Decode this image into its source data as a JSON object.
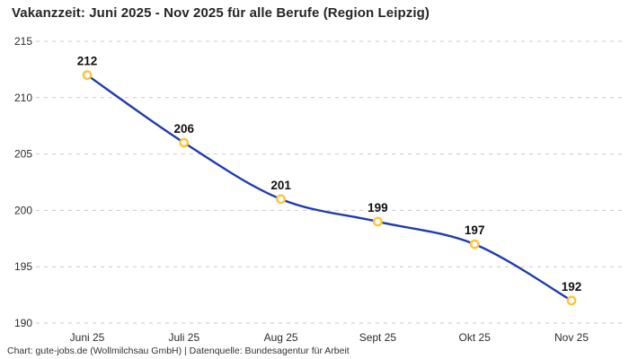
{
  "title": "Vakanzzeit: Juni 2025 - Nov 2025 für alle Berufe (Region Leipzig)",
  "footer": "Chart: gute-jobs.de (Wollmilchsau GmbH) | Datenquelle: Bundesagentur für Arbeit",
  "colors": {
    "line": "#1f3cad",
    "marker_ring": "#fec43c",
    "marker_fill": "#ffffff",
    "grid": "#c9c9c9",
    "title_text": "#262626",
    "tick_text": "#2d2d2d",
    "value_label_text": "#111111",
    "footer_text": "#333333",
    "background": "#ffffff"
  },
  "chart_data": {
    "type": "line",
    "title": "Vakanzzeit: Juni 2025 - Nov 2025 für alle Berufe (Region Leipzig)",
    "categories": [
      "Juni 25",
      "Juli 25",
      "Aug 25",
      "Sept 25",
      "Okt 25",
      "Nov 25"
    ],
    "values": [
      212,
      206,
      201,
      199,
      197,
      192
    ],
    "xlabel": "",
    "ylabel": "",
    "ylim": [
      190,
      215
    ],
    "ytick_step": 5,
    "yticks": [
      190,
      195,
      200,
      205,
      210,
      215
    ],
    "grid": "horizontal-dashed",
    "legend_position": "none",
    "data_labels": true,
    "smooth_line": true,
    "marker_style": "open-circle"
  }
}
